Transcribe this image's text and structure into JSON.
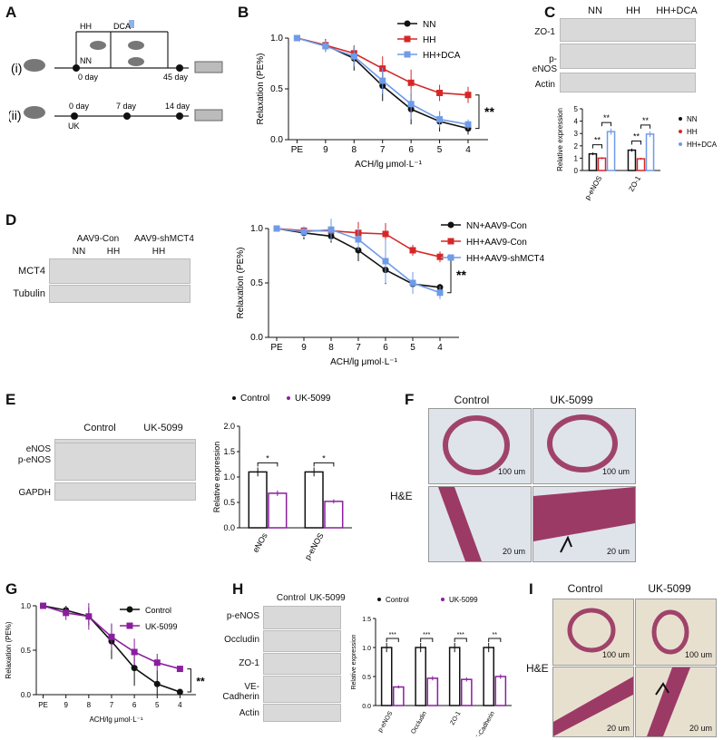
{
  "labels": {
    "A": "A",
    "B": "B",
    "C": "C",
    "D": "D",
    "E": "E",
    "F": "F",
    "G": "G",
    "H": "H",
    "I": "I"
  },
  "schematic": {
    "row1_label": "(i)",
    "row2_label": "(ii)",
    "hh": "HH",
    "nn": "NN",
    "dca": "DCA",
    "day0": "0 day",
    "day45": "45 day",
    "day0b": "0 day",
    "day7": "7 day",
    "day14": "14 day",
    "uk": "UK"
  },
  "colors": {
    "nn": "#111111",
    "hh": "#d62728",
    "dca": "#6f9be8",
    "uk": "#8a1f9e",
    "control": "#111111"
  },
  "blot_C": {
    "groups": [
      "NN",
      "HH",
      "HH+DCA"
    ],
    "rows": [
      "ZO-1",
      "p-eNOS",
      "Actin"
    ]
  },
  "blot_D": {
    "groups": [
      "AAV9-Con",
      "AAV9-shMCT4"
    ],
    "sub": [
      "NN",
      "HH",
      "HH"
    ],
    "rows": [
      "MCT4",
      "Tubulin"
    ]
  },
  "blot_E": {
    "groups": [
      "Control",
      "UK-5099"
    ],
    "rows": [
      "eNOS",
      "p-eNOS",
      "GAPDH"
    ]
  },
  "blot_H": {
    "groups": [
      "Control",
      "UK-5099"
    ],
    "rows": [
      "p-eNOS",
      "Occludin",
      "ZO-1",
      "VE-Cadherin",
      "Actin"
    ]
  },
  "histo_F": {
    "control": "Control",
    "uk": "UK-5099",
    "side": "H&E",
    "scale_top": "100 um",
    "scale_bottom": "20 um"
  },
  "histo_I": {
    "control": "Control",
    "uk": "UK-5099",
    "side": "H&E",
    "scale_top": "100 um",
    "scale_bottom": "20 um"
  },
  "chart_data": [
    {
      "id": "B",
      "type": "line",
      "ylabel": "Relaxation (PE%)",
      "xlabel": "ACH/lg μmol·L⁻¹",
      "categories": [
        "PE",
        "9",
        "8",
        "7",
        "6",
        "5",
        "4"
      ],
      "ylim": [
        0,
        1.0
      ],
      "yticks": [
        "0.0",
        "0.5",
        "1.0"
      ],
      "significance": "**",
      "series": [
        {
          "name": "NN",
          "values": [
            1.0,
            0.93,
            0.8,
            0.53,
            0.3,
            0.18,
            0.11
          ],
          "err": [
            0.02,
            0.06,
            0.12,
            0.15,
            0.15,
            0.1,
            0.06
          ]
        },
        {
          "name": "HH",
          "values": [
            1.0,
            0.93,
            0.85,
            0.7,
            0.56,
            0.46,
            0.44
          ],
          "err": [
            0.02,
            0.05,
            0.08,
            0.12,
            0.13,
            0.08,
            0.08
          ]
        },
        {
          "name": "HH+DCA",
          "values": [
            1.0,
            0.92,
            0.82,
            0.58,
            0.35,
            0.2,
            0.15
          ],
          "err": [
            0.02,
            0.06,
            0.1,
            0.13,
            0.15,
            0.08,
            0.05
          ]
        }
      ]
    },
    {
      "id": "C",
      "type": "bar",
      "ylabel": "Relative expression",
      "categories": [
        "p-eNOS",
        "ZO-1"
      ],
      "ylim": [
        0,
        5
      ],
      "yticks": [
        "0",
        "1",
        "2",
        "3",
        "4",
        "5"
      ],
      "significance": [
        "**",
        "**",
        "**",
        "**"
      ],
      "series": [
        {
          "name": "NN",
          "values": [
            1.35,
            1.65
          ]
        },
        {
          "name": "HH",
          "values": [
            1.0,
            0.95
          ]
        },
        {
          "name": "HH+DCA",
          "values": [
            3.15,
            2.95
          ]
        }
      ]
    },
    {
      "id": "D",
      "type": "line",
      "ylabel": "Relaxation (PE%)",
      "xlabel": "ACH/lg μmol·L⁻¹",
      "categories": [
        "PE",
        "9",
        "8",
        "7",
        "6",
        "5",
        "4"
      ],
      "ylim": [
        0,
        1.0
      ],
      "yticks": [
        "0.0",
        "0.5",
        "1.0"
      ],
      "significance": "**",
      "series": [
        {
          "name": "NN+AAV9-Con",
          "values": [
            1.0,
            0.96,
            0.93,
            0.8,
            0.62,
            0.49,
            0.46
          ],
          "err": [
            0.01,
            0.06,
            0.06,
            0.1,
            0.13,
            0.06,
            0.03
          ]
        },
        {
          "name": "HH+AAV9-Con",
          "values": [
            1.0,
            0.98,
            0.98,
            0.96,
            0.95,
            0.8,
            0.74
          ],
          "err": [
            0.01,
            0.04,
            0.06,
            0.1,
            0.1,
            0.05,
            0.05
          ]
        },
        {
          "name": "HH+AAV9-shMCT4",
          "values": [
            1.0,
            0.97,
            0.99,
            0.9,
            0.7,
            0.5,
            0.41
          ],
          "err": [
            0.01,
            0.05,
            0.1,
            0.1,
            0.2,
            0.1,
            0.06
          ]
        }
      ]
    },
    {
      "id": "E",
      "type": "bar",
      "ylabel": "Relative expression",
      "categories": [
        "eNOs",
        "p-eNOS"
      ],
      "ylim": [
        0,
        2.0
      ],
      "yticks": [
        "0.0",
        "0.5",
        "1.0",
        "1.5",
        "2.0"
      ],
      "significance": [
        "*",
        "*"
      ],
      "series": [
        {
          "name": "Control",
          "values": [
            1.1,
            1.1
          ]
        },
        {
          "name": "UK-5099",
          "values": [
            0.68,
            0.52
          ]
        }
      ]
    },
    {
      "id": "G",
      "type": "line",
      "ylabel": "Relaxation (PE%)",
      "xlabel": "ACH/lg μmol·L⁻¹",
      "categories": [
        "PE",
        "9",
        "8",
        "7",
        "6",
        "5",
        "4"
      ],
      "ylim": [
        0,
        1.0
      ],
      "yticks": [
        "0.0",
        "0.5",
        "1.0"
      ],
      "significance": "**",
      "series": [
        {
          "name": "Control",
          "values": [
            1.0,
            0.95,
            0.88,
            0.6,
            0.3,
            0.12,
            0.03
          ],
          "err": [
            0.01,
            0.05,
            0.1,
            0.2,
            0.2,
            0.15,
            0.03
          ]
        },
        {
          "name": "UK-5099",
          "values": [
            1.0,
            0.92,
            0.88,
            0.65,
            0.48,
            0.36,
            0.29
          ],
          "err": [
            0.01,
            0.08,
            0.15,
            0.15,
            0.15,
            0.1,
            0.03
          ]
        }
      ]
    },
    {
      "id": "H",
      "type": "bar",
      "ylabel": "Relative expression",
      "categories": [
        "p-eNOS",
        "Occludin",
        "ZO-1",
        "VE-Cadherin"
      ],
      "ylim": [
        0,
        1.5
      ],
      "yticks": [
        "0.0",
        "0.5",
        "1.0",
        "1.5"
      ],
      "significance": [
        "***",
        "***",
        "***",
        "**"
      ],
      "series": [
        {
          "name": "Control",
          "values": [
            1.0,
            1.0,
            1.0,
            1.0
          ]
        },
        {
          "name": "UK-5099",
          "values": [
            0.32,
            0.47,
            0.45,
            0.5
          ]
        }
      ]
    }
  ]
}
